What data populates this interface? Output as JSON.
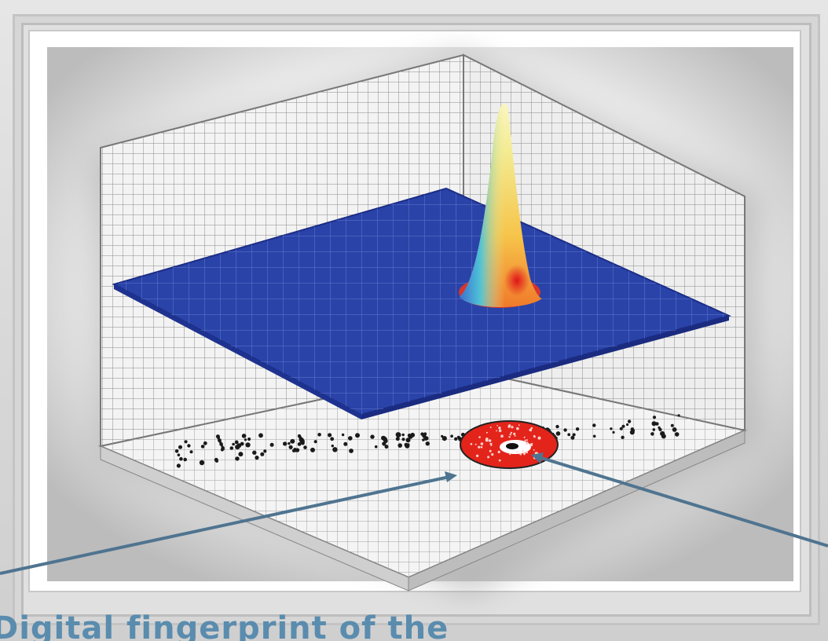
{
  "caption": {
    "text": "Digital fingerprint of the"
  },
  "figure": {
    "surface_color": "#2a43a8",
    "peak_colors": [
      "#2a43a8",
      "#3fb6c8",
      "#f3e98c",
      "#f6c44a",
      "#e8341f"
    ],
    "target_color": "#e3241b",
    "scatter_color": "#1a1a1a",
    "arrow_color": "#4f7490"
  }
}
